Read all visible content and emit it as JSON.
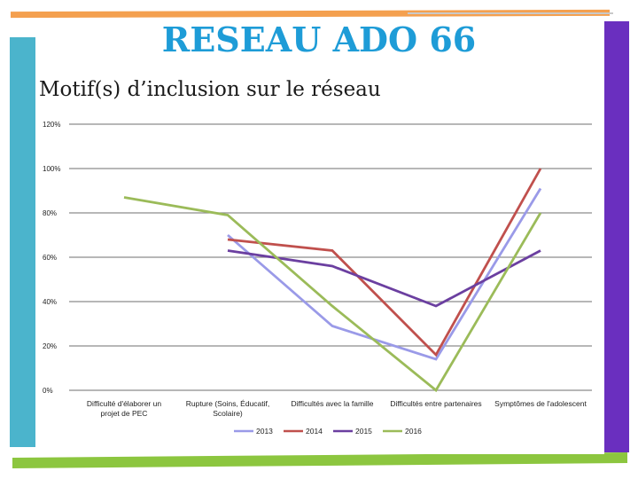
{
  "slide": {
    "title": "RESEAU ADO 66",
    "subtitle": "Motif(s) d’inclusion sur le réseau",
    "colors": {
      "top_bar": "#f4a04f",
      "left_bar": "#4bb4cc",
      "right_bar": "#6a2fbf",
      "bottom_bar": "#8cc63f"
    }
  },
  "chart_data": {
    "type": "line",
    "categories": [
      [
        "Difficulté d'élaborer un",
        "projet de PEC"
      ],
      [
        "Rupture (Soins, Éducatif,",
        "Scolaire)"
      ],
      [
        "Difficultés avec la famille"
      ],
      [
        "Difficultés entre partenaires"
      ],
      [
        "Symptômes de l'adolescent"
      ]
    ],
    "yticks": [
      "0%",
      "20%",
      "40%",
      "60%",
      "80%",
      "100%",
      "120%"
    ],
    "ylim": [
      0,
      120
    ],
    "grid": true,
    "legend_position": "bottom",
    "series": [
      {
        "name": "2013",
        "color": "#9a9ae8",
        "values": [
          null,
          70,
          29,
          14,
          91
        ]
      },
      {
        "name": "2014",
        "color": "#c0504d",
        "values": [
          null,
          68,
          63,
          16,
          100
        ]
      },
      {
        "name": "2015",
        "color": "#6b3fa0",
        "values": [
          null,
          63,
          56,
          38,
          63
        ]
      },
      {
        "name": "2016",
        "color": "#9bbb59",
        "values": [
          87,
          79,
          38,
          0,
          80
        ]
      }
    ]
  }
}
